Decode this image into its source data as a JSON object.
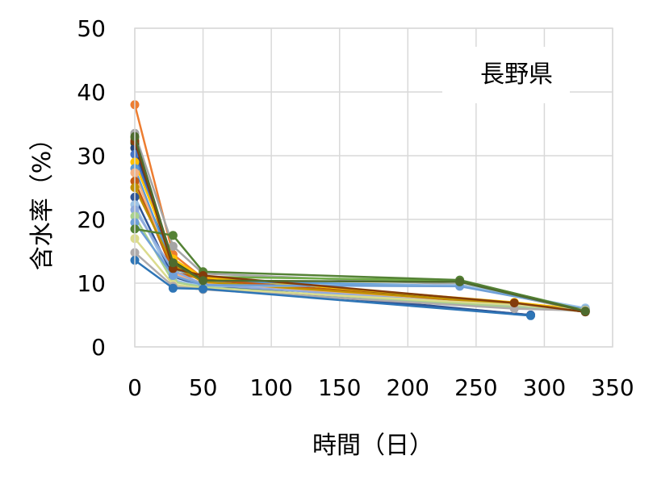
{
  "chart_data": {
    "type": "line",
    "title": "",
    "annotation": "長野県",
    "xlabel": "時間（日）",
    "ylabel": "含水率（%）",
    "xlim": [
      0,
      350
    ],
    "ylim": [
      0,
      50
    ],
    "x_ticks": [
      "0",
      "50",
      "100",
      "150",
      "200",
      "250",
      "300",
      "350"
    ],
    "y_ticks": [
      "0",
      "10",
      "20",
      "30",
      "40",
      "50"
    ],
    "grid": true,
    "legend": "none",
    "series": [
      {
        "color": "#ED7D31",
        "points": [
          [
            0,
            38.0
          ],
          [
            28,
            14.5
          ],
          [
            50,
            10.8
          ],
          [
            278,
            6.8
          ],
          [
            330,
            5.9
          ]
        ]
      },
      {
        "color": "#A5A5A5",
        "points": [
          [
            0,
            33.5
          ],
          [
            28,
            15.8
          ],
          [
            50,
            11.5
          ],
          [
            238,
            9.8
          ],
          [
            330,
            5.6
          ]
        ]
      },
      {
        "color": "#70AD47",
        "points": [
          [
            0,
            32.8
          ],
          [
            28,
            12.2
          ],
          [
            50,
            11.0
          ],
          [
            238,
            10.4
          ],
          [
            330,
            5.8
          ]
        ]
      },
      {
        "color": "#375623",
        "points": [
          [
            0,
            32.0
          ],
          [
            28,
            13.5
          ],
          [
            50,
            10.5
          ],
          [
            278,
            6.9
          ],
          [
            330,
            5.5
          ]
        ]
      },
      {
        "color": "#264478",
        "points": [
          [
            0,
            31.2
          ],
          [
            28,
            12.0
          ],
          [
            50,
            9.8
          ],
          [
            290,
            5.0
          ]
        ]
      },
      {
        "color": "#4472C4",
        "points": [
          [
            0,
            30.2
          ],
          [
            28,
            13.0
          ],
          [
            50,
            10.2
          ],
          [
            278,
            6.3
          ],
          [
            330,
            5.9
          ]
        ]
      },
      {
        "color": "#FFC000",
        "points": [
          [
            0,
            29.0
          ],
          [
            28,
            13.8
          ],
          [
            50,
            10.9
          ],
          [
            278,
            7.0
          ],
          [
            330,
            5.8
          ]
        ]
      },
      {
        "color": "#5B9BD5",
        "points": [
          [
            0,
            28.0
          ],
          [
            28,
            12.5
          ],
          [
            50,
            10.3
          ],
          [
            238,
            9.6
          ],
          [
            330,
            6.0
          ]
        ]
      },
      {
        "color": "#F4B183",
        "points": [
          [
            0,
            27.3
          ],
          [
            28,
            11.5
          ],
          [
            50,
            10.0
          ],
          [
            278,
            6.5
          ],
          [
            330,
            5.7
          ]
        ]
      },
      {
        "color": "#C55A11",
        "points": [
          [
            0,
            26.0
          ],
          [
            28,
            11.8
          ],
          [
            50,
            10.6
          ],
          [
            278,
            6.6
          ],
          [
            330,
            5.6
          ]
        ]
      },
      {
        "color": "#BF9000",
        "points": [
          [
            0,
            25.0
          ],
          [
            28,
            12.8
          ],
          [
            50,
            10.2
          ],
          [
            278,
            6.8
          ],
          [
            330,
            5.7
          ]
        ]
      },
      {
        "color": "#2F5597",
        "points": [
          [
            0,
            23.5
          ],
          [
            28,
            11.0
          ],
          [
            50,
            9.6
          ],
          [
            290,
            5.0
          ]
        ]
      },
      {
        "color": "#9DC3E6",
        "points": [
          [
            0,
            22.3
          ],
          [
            28,
            10.5
          ],
          [
            50,
            9.5
          ],
          [
            238,
            9.7
          ],
          [
            330,
            6.1
          ]
        ]
      },
      {
        "color": "#8FAADC",
        "points": [
          [
            0,
            21.5
          ],
          [
            28,
            12.0
          ],
          [
            50,
            9.8
          ],
          [
            278,
            6.4
          ],
          [
            330,
            5.8
          ]
        ]
      },
      {
        "color": "#A9D18E",
        "points": [
          [
            0,
            20.5
          ],
          [
            28,
            10.2
          ],
          [
            50,
            9.4
          ],
          [
            278,
            6.2
          ],
          [
            330,
            5.6
          ]
        ]
      },
      {
        "color": "#6FA0D8",
        "points": [
          [
            0,
            19.5
          ],
          [
            28,
            11.2
          ],
          [
            50,
            9.7
          ],
          [
            238,
            9.5
          ],
          [
            330,
            5.9
          ]
        ]
      },
      {
        "color": "#548235",
        "points": [
          [
            0,
            18.5
          ],
          [
            28,
            17.5
          ],
          [
            50,
            11.8
          ],
          [
            238,
            10.5
          ],
          [
            330,
            5.7
          ]
        ]
      },
      {
        "color": "#DBDB8D",
        "points": [
          [
            0,
            17.0
          ],
          [
            28,
            9.8
          ],
          [
            50,
            9.2
          ],
          [
            278,
            6.6
          ],
          [
            330,
            5.8
          ]
        ]
      },
      {
        "color": "#AFABAB",
        "points": [
          [
            0,
            14.8
          ],
          [
            28,
            9.5
          ],
          [
            50,
            9.0
          ],
          [
            278,
            6.0
          ],
          [
            330,
            5.7
          ]
        ]
      },
      {
        "color": "#2E75B6",
        "points": [
          [
            0,
            13.6
          ],
          [
            28,
            9.2
          ],
          [
            50,
            9.1
          ],
          [
            290,
            4.9
          ]
        ]
      },
      {
        "color": "#833C0B",
        "points": [
          [
            0,
            32.3
          ],
          [
            28,
            12.3
          ],
          [
            50,
            11.2
          ],
          [
            278,
            6.9
          ],
          [
            330,
            5.5
          ]
        ]
      },
      {
        "color": "#4E6B2E",
        "points": [
          [
            0,
            33.0
          ],
          [
            28,
            13.2
          ],
          [
            50,
            10.4
          ],
          [
            238,
            10.2
          ],
          [
            330,
            5.6
          ]
        ]
      }
    ]
  }
}
